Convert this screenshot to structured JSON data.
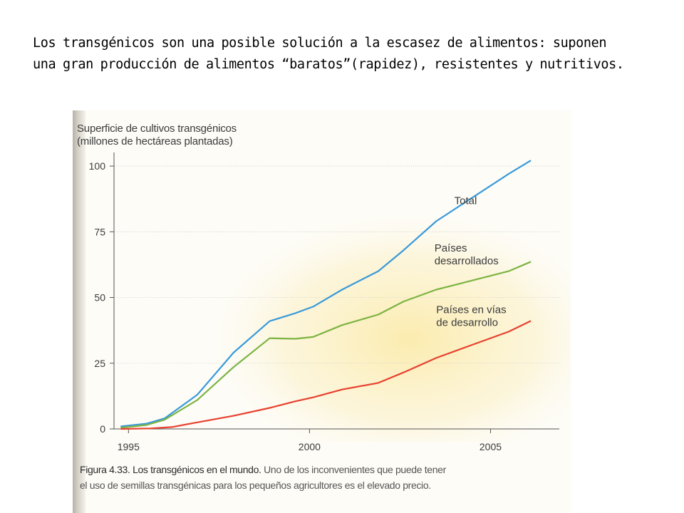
{
  "slide": {
    "title_line1": "Los transgénicos son una posible solución a la escasez de alimentos: suponen",
    "title_line2": "una gran producción de alimentos “baratos”(rapidez), resistentes y nutritivos."
  },
  "caption": {
    "label": "Figura 4.33.",
    "title": "Los transgénicos en el mundo.",
    "text_line1": "Uno de los inconvenientes que puede tener",
    "text_line2": "el uso de semillas transgénicas para los pequeños agricultores es el elevado precio."
  },
  "colors": {
    "total": "#3a9ad9",
    "developed": "#7cb342",
    "developing": "#e8412f",
    "axis": "#555555",
    "grid": "#c8c8c8",
    "text": "#3b3b3b"
  },
  "chart_data": {
    "type": "line",
    "title": "Superficie de cultivos transgénicos",
    "subtitle": "(millones de hectáreas plantadas)",
    "xlabel": "",
    "ylabel": "",
    "xlim": [
      1994.6,
      2006.9
    ],
    "ylim": [
      0,
      103
    ],
    "x_ticks": [
      1995,
      2000,
      2005
    ],
    "x_tick_labels": [
      "1995",
      "2000",
      "2005"
    ],
    "y_ticks": [
      0,
      25,
      50,
      75,
      100
    ],
    "y_tick_labels": [
      "0",
      "25",
      "50",
      "75",
      "100"
    ],
    "grid": true,
    "series": [
      {
        "name": "Total",
        "label_lines": [
          "Total"
        ],
        "x": [
          1994.8,
          1995.5,
          1996.0,
          1996.9,
          1997.9,
          1998.9,
          1999.6,
          2000.1,
          2000.9,
          2001.9,
          2002.6,
          2003.5,
          2004.5,
          2005.5,
          2006.1
        ],
        "values": [
          1.0,
          2.0,
          4.0,
          13.0,
          29.0,
          41.0,
          44.0,
          46.5,
          53.0,
          60.0,
          68.0,
          79.0,
          88.0,
          97.0,
          102.0
        ]
      },
      {
        "name": "Países desarrollados",
        "label_lines": [
          "Países",
          "desarrollados"
        ],
        "x": [
          1994.8,
          1995.5,
          1996.0,
          1996.9,
          1997.9,
          1998.9,
          1999.6,
          2000.1,
          2000.9,
          2001.9,
          2002.6,
          2003.5,
          2004.5,
          2005.5,
          2006.1
        ],
        "values": [
          0.5,
          1.5,
          3.5,
          11.0,
          23.5,
          34.5,
          34.3,
          35.0,
          39.5,
          43.5,
          48.5,
          53.0,
          56.5,
          60.0,
          63.5
        ]
      },
      {
        "name": "Países en vías de desarrollo",
        "label_lines": [
          "Países en vías",
          "de desarrollo"
        ],
        "x": [
          1994.8,
          1995.6,
          1996.2,
          1996.9,
          1997.9,
          1998.9,
          1999.6,
          2000.1,
          2000.9,
          2001.9,
          2002.6,
          2003.5,
          2004.5,
          2005.5,
          2006.1
        ],
        "values": [
          0.0,
          0.2,
          0.7,
          2.5,
          5.0,
          8.0,
          10.5,
          12.0,
          15.0,
          17.5,
          21.5,
          27.0,
          32.0,
          37.0,
          41.0
        ]
      }
    ]
  }
}
